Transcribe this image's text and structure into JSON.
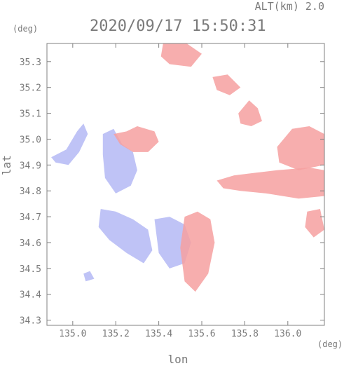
{
  "header": {
    "altitude_label": "ALT(km) 2.0",
    "datetime": "2020/09/17 15:50:31"
  },
  "axes": {
    "x_unit": "(deg)",
    "y_unit": "(deg)",
    "xlabel": "lon",
    "ylabel": "lat"
  },
  "colors": {
    "positive": "#f6a0a0",
    "negative": "#b4b8f4",
    "axis": "#808080",
    "text": "#7a7a7a"
  },
  "chart_data": {
    "type": "heatmap",
    "title": "2020/09/17 15:50:31",
    "subtitle": "ALT(km) 2.0",
    "xlabel": "lon",
    "ylabel": "lat",
    "xlim": [
      134.88,
      136.17
    ],
    "ylim": [
      34.28,
      35.37
    ],
    "x_ticks": [
      135.0,
      135.2,
      135.4,
      135.6,
      135.8,
      136.0
    ],
    "x_tick_labels": [
      "135.0",
      "135.2",
      "135.4",
      "135.6",
      "135.8",
      "136.0"
    ],
    "y_ticks": [
      34.3,
      34.4,
      34.5,
      34.6,
      34.7,
      34.8,
      34.9,
      35.0,
      35.1,
      35.2,
      35.3
    ],
    "y_tick_labels": [
      "34.3",
      "34.4",
      "34.5",
      "34.6",
      "34.7",
      "34.8",
      "34.9",
      "35.0",
      "35.1",
      "35.2",
      "35.3"
    ],
    "grid": false,
    "regions": [
      {
        "sign": "negative",
        "polygon": [
          [
            134.9,
            34.93
          ],
          [
            134.97,
            34.96
          ],
          [
            135.02,
            35.03
          ],
          [
            135.05,
            35.06
          ],
          [
            135.07,
            35.02
          ],
          [
            135.03,
            34.95
          ],
          [
            134.98,
            34.9
          ],
          [
            134.92,
            34.91
          ]
        ]
      },
      {
        "sign": "negative",
        "polygon": [
          [
            135.14,
            35.02
          ],
          [
            135.19,
            35.04
          ],
          [
            135.23,
            34.98
          ],
          [
            135.28,
            34.95
          ],
          [
            135.3,
            34.88
          ],
          [
            135.27,
            34.82
          ],
          [
            135.2,
            34.79
          ],
          [
            135.15,
            34.85
          ],
          [
            135.14,
            34.94
          ]
        ]
      },
      {
        "sign": "negative",
        "polygon": [
          [
            135.13,
            34.73
          ],
          [
            135.2,
            34.72
          ],
          [
            135.28,
            34.69
          ],
          [
            135.35,
            34.65
          ],
          [
            135.37,
            34.57
          ],
          [
            135.33,
            34.52
          ],
          [
            135.25,
            34.56
          ],
          [
            135.17,
            34.61
          ],
          [
            135.12,
            34.66
          ]
        ]
      },
      {
        "sign": "negative",
        "polygon": [
          [
            135.38,
            34.69
          ],
          [
            135.45,
            34.7
          ],
          [
            135.52,
            34.67
          ],
          [
            135.55,
            34.6
          ],
          [
            135.52,
            34.52
          ],
          [
            135.45,
            34.5
          ],
          [
            135.4,
            34.56
          ]
        ]
      },
      {
        "sign": "negative",
        "polygon": [
          [
            135.05,
            34.48
          ],
          [
            135.08,
            34.49
          ],
          [
            135.1,
            34.46
          ],
          [
            135.06,
            34.45
          ]
        ]
      },
      {
        "sign": "positive",
        "polygon": [
          [
            135.19,
            35.02
          ],
          [
            135.25,
            35.03
          ],
          [
            135.3,
            35.05
          ],
          [
            135.38,
            35.03
          ],
          [
            135.4,
            34.99
          ],
          [
            135.35,
            34.95
          ],
          [
            135.28,
            34.95
          ],
          [
            135.22,
            34.98
          ]
        ]
      },
      {
        "sign": "positive",
        "polygon": [
          [
            135.52,
            34.7
          ],
          [
            135.58,
            34.72
          ],
          [
            135.64,
            34.69
          ],
          [
            135.66,
            34.6
          ],
          [
            135.63,
            34.48
          ],
          [
            135.57,
            34.41
          ],
          [
            135.52,
            34.45
          ],
          [
            135.5,
            34.58
          ]
        ]
      },
      {
        "sign": "positive",
        "polygon": [
          [
            135.67,
            34.84
          ],
          [
            135.75,
            34.86
          ],
          [
            135.85,
            34.87
          ],
          [
            135.95,
            34.88
          ],
          [
            136.1,
            34.89
          ],
          [
            136.17,
            34.88
          ],
          [
            136.17,
            34.78
          ],
          [
            136.05,
            34.77
          ],
          [
            135.9,
            34.79
          ],
          [
            135.78,
            34.8
          ],
          [
            135.7,
            34.81
          ]
        ]
      },
      {
        "sign": "positive",
        "polygon": [
          [
            135.95,
            34.97
          ],
          [
            136.02,
            35.04
          ],
          [
            136.1,
            35.05
          ],
          [
            136.17,
            35.02
          ],
          [
            136.17,
            34.9
          ],
          [
            136.05,
            34.88
          ],
          [
            135.96,
            34.91
          ]
        ]
      },
      {
        "sign": "positive",
        "polygon": [
          [
            135.77,
            35.1
          ],
          [
            135.82,
            35.15
          ],
          [
            135.86,
            35.12
          ],
          [
            135.88,
            35.07
          ],
          [
            135.83,
            35.05
          ],
          [
            135.78,
            35.06
          ]
        ]
      },
      {
        "sign": "positive",
        "polygon": [
          [
            135.65,
            35.24
          ],
          [
            135.72,
            35.25
          ],
          [
            135.78,
            35.2
          ],
          [
            135.73,
            35.17
          ],
          [
            135.67,
            35.19
          ]
        ]
      },
      {
        "sign": "positive",
        "polygon": [
          [
            135.42,
            35.37
          ],
          [
            135.53,
            35.37
          ],
          [
            135.6,
            35.33
          ],
          [
            135.55,
            35.28
          ],
          [
            135.45,
            35.29
          ],
          [
            135.41,
            35.32
          ]
        ]
      },
      {
        "sign": "positive",
        "polygon": [
          [
            136.09,
            34.72
          ],
          [
            136.15,
            34.73
          ],
          [
            136.17,
            34.65
          ],
          [
            136.12,
            34.62
          ],
          [
            136.08,
            34.66
          ]
        ]
      }
    ]
  }
}
